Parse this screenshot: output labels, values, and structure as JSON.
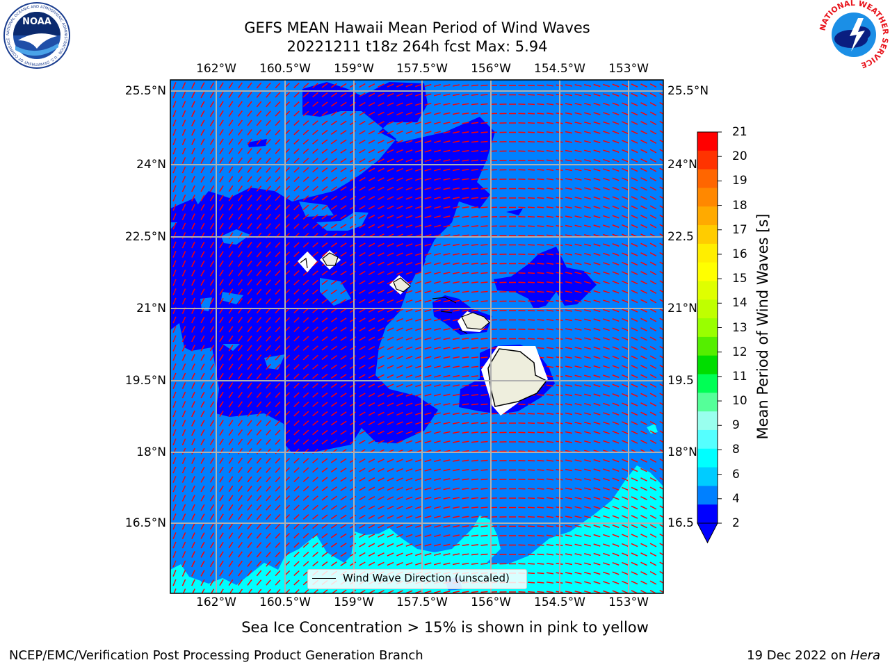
{
  "header": {
    "title": "GEFS MEAN Hawaii Mean Period of Wind Waves",
    "subtitle": "20221211 t18z 264h fcst   Max: 5.94"
  },
  "map": {
    "lon_labels": [
      "162°W",
      "160.5°W",
      "159°W",
      "157.5°W",
      "156°W",
      "154.5°W",
      "153°W"
    ],
    "lat_labels_left": [
      "25.5°N",
      "24°N",
      "22.5°N",
      "21°N",
      "19.5°N",
      "18°N",
      "16.5°N"
    ],
    "lat_labels_right": [
      "25.5°N",
      "24°N",
      "22.5",
      "21°N",
      "19.5",
      "18°N",
      "16.5"
    ],
    "legend_label": "Wind Wave Direction (unscaled)",
    "ocean_color": "#0080ff",
    "low_period_color": "#0000ff",
    "mid_period_color": "#00ffff",
    "land_color": "#eeeedd",
    "arrow_color": "#ff0000"
  },
  "colorbar": {
    "label": "Mean Period of Wind Waves [s]",
    "ticks": [
      "21",
      "20",
      "19",
      "18",
      "17",
      "16",
      "15",
      "14",
      "13",
      "12",
      "11",
      "10",
      "9",
      "8",
      "6",
      "4",
      "2"
    ],
    "colors": [
      "#ff0000",
      "#ff3300",
      "#ff6600",
      "#ff8800",
      "#ffaa00",
      "#ffcc00",
      "#ffee00",
      "#ffff00",
      "#dfff00",
      "#bfff00",
      "#99ff00",
      "#55ee00",
      "#00dd00",
      "#00ff55",
      "#55ff99",
      "#99ffee",
      "#55ffff",
      "#00ffff",
      "#00ccff",
      "#0080ff",
      "#0000ff"
    ]
  },
  "footer": {
    "ice_note": "Sea Ice Concentration > 15% is shown in pink to yellow",
    "credit": "NCEP/EMC/Verification Post Processing Product Generation Branch",
    "date_prefix": "19 Dec 2022 on ",
    "machine": "Hera"
  },
  "logos": {
    "left": "NOAA",
    "left_ring": "NATIONAL OCEANIC AND ATMOSPHERIC ADMINISTRATION · U.S. DEPARTMENT OF COMMERCE",
    "right_ring": "NATIONAL WEATHER SERVICE"
  }
}
